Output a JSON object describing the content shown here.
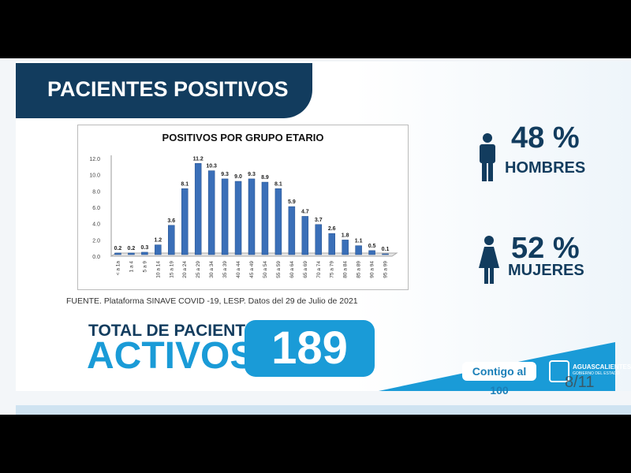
{
  "header": {
    "title": "PACIENTES POSITIVOS"
  },
  "chart_data": {
    "type": "bar",
    "title": "POSITIVOS POR GRUPO ETARIO",
    "xlabel": "",
    "ylabel": "",
    "ylim": [
      0,
      12
    ],
    "yticks": [
      "0.0",
      "2.0",
      "4.0",
      "6.0",
      "8.0",
      "10.0",
      "12.0"
    ],
    "categories": [
      "< a 1a",
      "1 a 4",
      "5 a 9",
      "10 a 14",
      "15 a 19",
      "20 a 24",
      "25 a 29",
      "30 a 34",
      "35 a 39",
      "40 a 44",
      "45 a 49",
      "50 a 54",
      "55 a 59",
      "60 a 64",
      "65 a 69",
      "70 a 74",
      "75 a 79",
      "80 a 84",
      "85 a 89",
      "90 a 94",
      "95 a 99"
    ],
    "values": [
      0.2,
      0.2,
      0.3,
      1.2,
      3.6,
      8.1,
      11.2,
      10.3,
      9.3,
      9.0,
      9.3,
      8.9,
      8.1,
      5.9,
      4.7,
      3.7,
      2.6,
      1.8,
      1.1,
      0.5,
      0.1
    ],
    "value_labels": [
      "0.2",
      "0.2",
      "0.3",
      "1.2",
      "3.6",
      "8.1",
      "11.2",
      "10.3",
      "9.3",
      "9.0",
      "9.3",
      "8.9",
      "8.1",
      "5.9",
      "4.7",
      "3.7",
      "2.6",
      "1.8",
      "1.1",
      "0.5",
      "0.1"
    ],
    "bar_color": "#3a6fb8",
    "grid": false,
    "legend": "none"
  },
  "source": "FUENTE. Plataforma SINAVE COVID -19, LESP. Datos del 29 de Julio de 2021",
  "total": {
    "line1": "TOTAL DE PACIENTES",
    "line2": "ACTIVOS",
    "value": "189"
  },
  "stats": {
    "men_pct": "48 %",
    "men_label": "HOMBRES",
    "women_pct": "52 %",
    "women_label": "MUJERES"
  },
  "footer": {
    "brand": "Contigo al 100",
    "gov_name": "AGUASCALIENTES",
    "gov_sub": "GOBIERNO DEL ESTADO",
    "page": "8/11"
  },
  "colors": {
    "navy": "#123c5e",
    "accent": "#1a9bd7"
  }
}
